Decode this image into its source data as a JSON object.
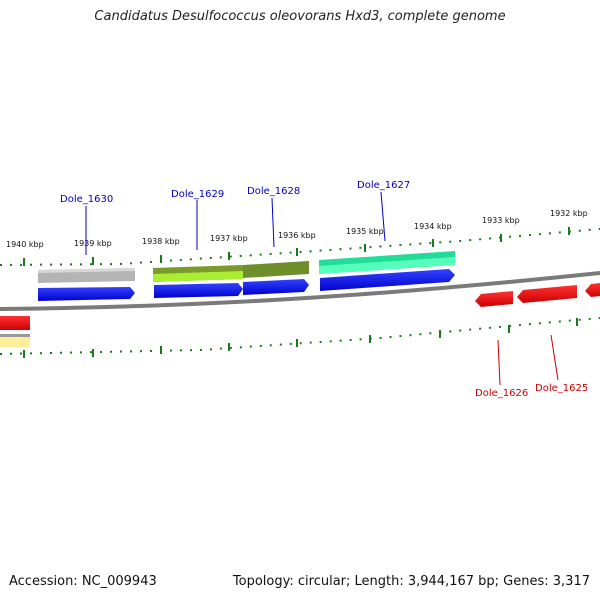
{
  "title": "Candidatus Desulfococcus oleovorans Hxd3, complete genome",
  "accession_label": "Accession: NC_009943",
  "summary": "Topology: circular; Length: 3,944,167 bp; Genes: 3,317",
  "kbp_ticks": [
    {
      "label": "1940 kbp"
    },
    {
      "label": "1939 kbp"
    },
    {
      "label": "1938 kbp"
    },
    {
      "label": "1937 kbp"
    },
    {
      "label": "1936 kbp"
    },
    {
      "label": "1935 kbp"
    },
    {
      "label": "1934 kbp"
    },
    {
      "label": "1933 kbp"
    },
    {
      "label": "1932 kbp"
    }
  ],
  "genes": [
    {
      "name": "Dole_1630",
      "strand": "forward",
      "color": "#0000ee"
    },
    {
      "name": "Dole_1629",
      "strand": "forward",
      "color": "#0000ee"
    },
    {
      "name": "Dole_1628",
      "strand": "forward",
      "color": "#0000ee"
    },
    {
      "name": "Dole_1627",
      "strand": "forward",
      "color": "#0000ee"
    },
    {
      "name": "Dole_1626",
      "strand": "reverse",
      "color": "#ee0000"
    },
    {
      "name": "Dole_1625",
      "strand": "reverse",
      "color": "#ee0000"
    }
  ],
  "colors": {
    "label_forward": "#0000cc",
    "label_reverse": "#cc0000",
    "tick": "#1a7a1a",
    "backbone": "#7a7a7a"
  }
}
